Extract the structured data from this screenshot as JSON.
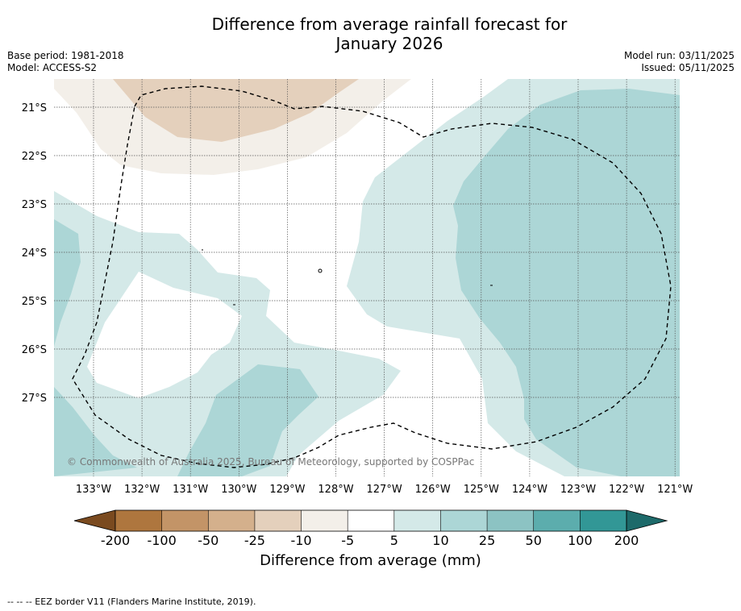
{
  "title_line1": "Difference from average rainfall forecast for",
  "title_line2": "January 2026",
  "base_period": "Base period: 1981-2018",
  "model": "Model: ACCESS-S2",
  "model_run": "Model run: 03/11/2025",
  "issued": "Issued: 05/11/2025",
  "copyright": "© Commonwealth of Australia 2025, Bureau of Meteorology, supported by COSPPac",
  "lat_labels": [
    "21°S",
    "22°S",
    "23°S",
    "24°S",
    "25°S",
    "26°S",
    "27°S"
  ],
  "lon_labels": [
    "133°W",
    "132°W",
    "131°W",
    "130°W",
    "129°W",
    "128°W",
    "127°W",
    "126°W",
    "125°W",
    "124°W",
    "123°W",
    "122°W",
    "121°W"
  ],
  "colorbar": {
    "ticks": [
      "-200",
      "-100",
      "-50",
      "-25",
      "-10",
      "-5",
      "5",
      "10",
      "25",
      "50",
      "100",
      "200"
    ],
    "colors": [
      "#7a4a1f",
      "#ae763e",
      "#c39467",
      "#d4b08c",
      "#e4d0bc",
      "#f3efe9",
      "#ffffff",
      "#d4e9e8",
      "#acd6d6",
      "#8cc3c3",
      "#5cadad",
      "#329796",
      "#1d6a6a"
    ],
    "label": "Difference from average (mm)"
  },
  "legend_text": "--  --  -- EEZ border V11 (Flanders Marine Institute, 2019)."
}
